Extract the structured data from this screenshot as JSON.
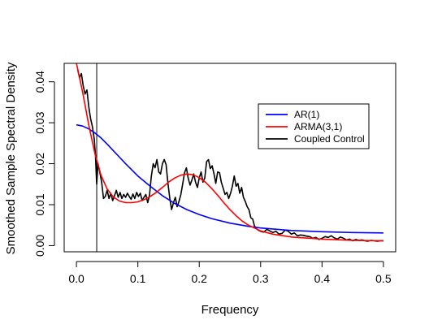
{
  "chart_data": {
    "type": "line",
    "title": "",
    "xlabel": "Frequency",
    "ylabel": "Smoothed Sample Spectral Density",
    "xlim": [
      -0.02,
      0.52
    ],
    "ylim": [
      -0.0015,
      0.0445
    ],
    "x_ticks": [
      0.0,
      0.1,
      0.2,
      0.3,
      0.4,
      0.5
    ],
    "x_tick_labels": [
      "0.0",
      "0.1",
      "0.2",
      "0.3",
      "0.4",
      "0.5"
    ],
    "y_ticks": [
      0.0,
      0.01,
      0.02,
      0.03,
      0.04
    ],
    "y_tick_labels": [
      "0.00",
      "0.01",
      "0.02",
      "0.03",
      "0.04"
    ],
    "grid": false,
    "legend_position": "upper-right",
    "vertical_line": 0.033,
    "series": [
      {
        "name": "AR(1)",
        "color": "#0000ff",
        "x": [
          0.0,
          0.01,
          0.02,
          0.03,
          0.04,
          0.05,
          0.06,
          0.07,
          0.08,
          0.09,
          0.1,
          0.12,
          0.14,
          0.16,
          0.18,
          0.2,
          0.22,
          0.25,
          0.28,
          0.3,
          0.35,
          0.4,
          0.45,
          0.5
        ],
        "values": [
          0.0295,
          0.0292,
          0.0285,
          0.0275,
          0.0263,
          0.0248,
          0.0232,
          0.0216,
          0.02,
          0.0185,
          0.017,
          0.0145,
          0.0122,
          0.0103,
          0.0088,
          0.0076,
          0.0066,
          0.0055,
          0.0047,
          0.0043,
          0.0037,
          0.0034,
          0.0032,
          0.0031
        ]
      },
      {
        "name": "ARMA(3,1)",
        "color": "#ff0000",
        "x": [
          0.0,
          0.01,
          0.02,
          0.03,
          0.04,
          0.05,
          0.06,
          0.07,
          0.08,
          0.09,
          0.1,
          0.11,
          0.12,
          0.13,
          0.14,
          0.15,
          0.16,
          0.17,
          0.18,
          0.19,
          0.2,
          0.21,
          0.22,
          0.23,
          0.24,
          0.25,
          0.26,
          0.27,
          0.28,
          0.3,
          0.32,
          0.35,
          0.4,
          0.45,
          0.5
        ],
        "values": [
          0.0445,
          0.0375,
          0.0295,
          0.0225,
          0.0172,
          0.0138,
          0.0119,
          0.0109,
          0.0105,
          0.0105,
          0.0107,
          0.0112,
          0.012,
          0.013,
          0.0142,
          0.0155,
          0.0165,
          0.0172,
          0.0175,
          0.0173,
          0.0166,
          0.0155,
          0.014,
          0.0123,
          0.0105,
          0.0088,
          0.0073,
          0.006,
          0.005,
          0.0036,
          0.0028,
          0.0021,
          0.0016,
          0.0013,
          0.0012
        ]
      },
      {
        "name": "Coupled Control",
        "color": "#000000",
        "x": [
          0.002,
          0.005,
          0.008,
          0.011,
          0.014,
          0.017,
          0.02,
          0.023,
          0.026,
          0.029,
          0.031,
          0.033,
          0.035,
          0.038,
          0.041,
          0.044,
          0.047,
          0.05,
          0.053,
          0.056,
          0.059,
          0.062,
          0.065,
          0.068,
          0.071,
          0.074,
          0.077,
          0.08,
          0.083,
          0.086,
          0.089,
          0.092,
          0.095,
          0.098,
          0.101,
          0.104,
          0.107,
          0.11,
          0.113,
          0.116,
          0.119,
          0.122,
          0.125,
          0.128,
          0.131,
          0.134,
          0.137,
          0.14,
          0.143,
          0.146,
          0.149,
          0.152,
          0.155,
          0.158,
          0.161,
          0.164,
          0.167,
          0.17,
          0.173,
          0.176,
          0.179,
          0.182,
          0.185,
          0.188,
          0.191,
          0.194,
          0.197,
          0.2,
          0.203,
          0.206,
          0.209,
          0.212,
          0.215,
          0.218,
          0.221,
          0.224,
          0.227,
          0.23,
          0.233,
          0.236,
          0.239,
          0.242,
          0.245,
          0.248,
          0.251,
          0.254,
          0.257,
          0.26,
          0.263,
          0.266,
          0.269,
          0.272,
          0.275,
          0.278,
          0.281,
          0.284,
          0.287,
          0.29,
          0.293,
          0.296,
          0.3,
          0.305,
          0.31,
          0.315,
          0.32,
          0.325,
          0.33,
          0.335,
          0.34,
          0.345,
          0.35,
          0.355,
          0.36,
          0.365,
          0.37,
          0.375,
          0.38,
          0.385,
          0.39,
          0.395,
          0.4,
          0.405,
          0.41,
          0.415,
          0.42,
          0.425,
          0.43,
          0.435,
          0.44,
          0.445,
          0.45,
          0.455,
          0.46,
          0.465,
          0.47,
          0.475,
          0.48,
          0.485,
          0.49,
          0.495,
          0.5
        ],
        "values": [
          0.043,
          0.041,
          0.042,
          0.039,
          0.037,
          0.038,
          0.034,
          0.031,
          0.029,
          0.026,
          0.022,
          0.015,
          0.02,
          0.018,
          0.0155,
          0.0115,
          0.012,
          0.0135,
          0.0115,
          0.0128,
          0.011,
          0.0122,
          0.0135,
          0.0118,
          0.013,
          0.0115,
          0.0125,
          0.0118,
          0.0128,
          0.012,
          0.0113,
          0.0126,
          0.0115,
          0.013,
          0.012,
          0.0128,
          0.011,
          0.0118,
          0.0125,
          0.0105,
          0.0123,
          0.017,
          0.02,
          0.019,
          0.021,
          0.018,
          0.0175,
          0.02,
          0.021,
          0.0198,
          0.0152,
          0.0115,
          0.0088,
          0.0105,
          0.0118,
          0.0095,
          0.0108,
          0.0125,
          0.015,
          0.0178,
          0.019,
          0.0165,
          0.0148,
          0.016,
          0.0175,
          0.0155,
          0.0142,
          0.0165,
          0.018,
          0.0155,
          0.0165,
          0.0205,
          0.021,
          0.0188,
          0.0195,
          0.0175,
          0.0152,
          0.018,
          0.0178,
          0.0155,
          0.014,
          0.0125,
          0.013,
          0.0115,
          0.0128,
          0.0145,
          0.017,
          0.0145,
          0.0152,
          0.0128,
          0.0142,
          0.0118,
          0.0108,
          0.0095,
          0.0088,
          0.0068,
          0.0065,
          0.0048,
          0.0042,
          0.0038,
          0.0035,
          0.0033,
          0.004,
          0.0036,
          0.0032,
          0.0035,
          0.0028,
          0.003,
          0.0038,
          0.0035,
          0.0028,
          0.0031,
          0.0024,
          0.0026,
          0.0025,
          0.0023,
          0.0022,
          0.0018,
          0.002,
          0.0015,
          0.0018,
          0.0022,
          0.002,
          0.0024,
          0.0019,
          0.0016,
          0.0021,
          0.0018,
          0.0014,
          0.0016,
          0.0012,
          0.0015,
          0.0013,
          0.0014,
          0.0012,
          0.0011,
          0.0013,
          0.0012,
          0.0011,
          0.0012,
          0.0012
        ]
      }
    ]
  }
}
